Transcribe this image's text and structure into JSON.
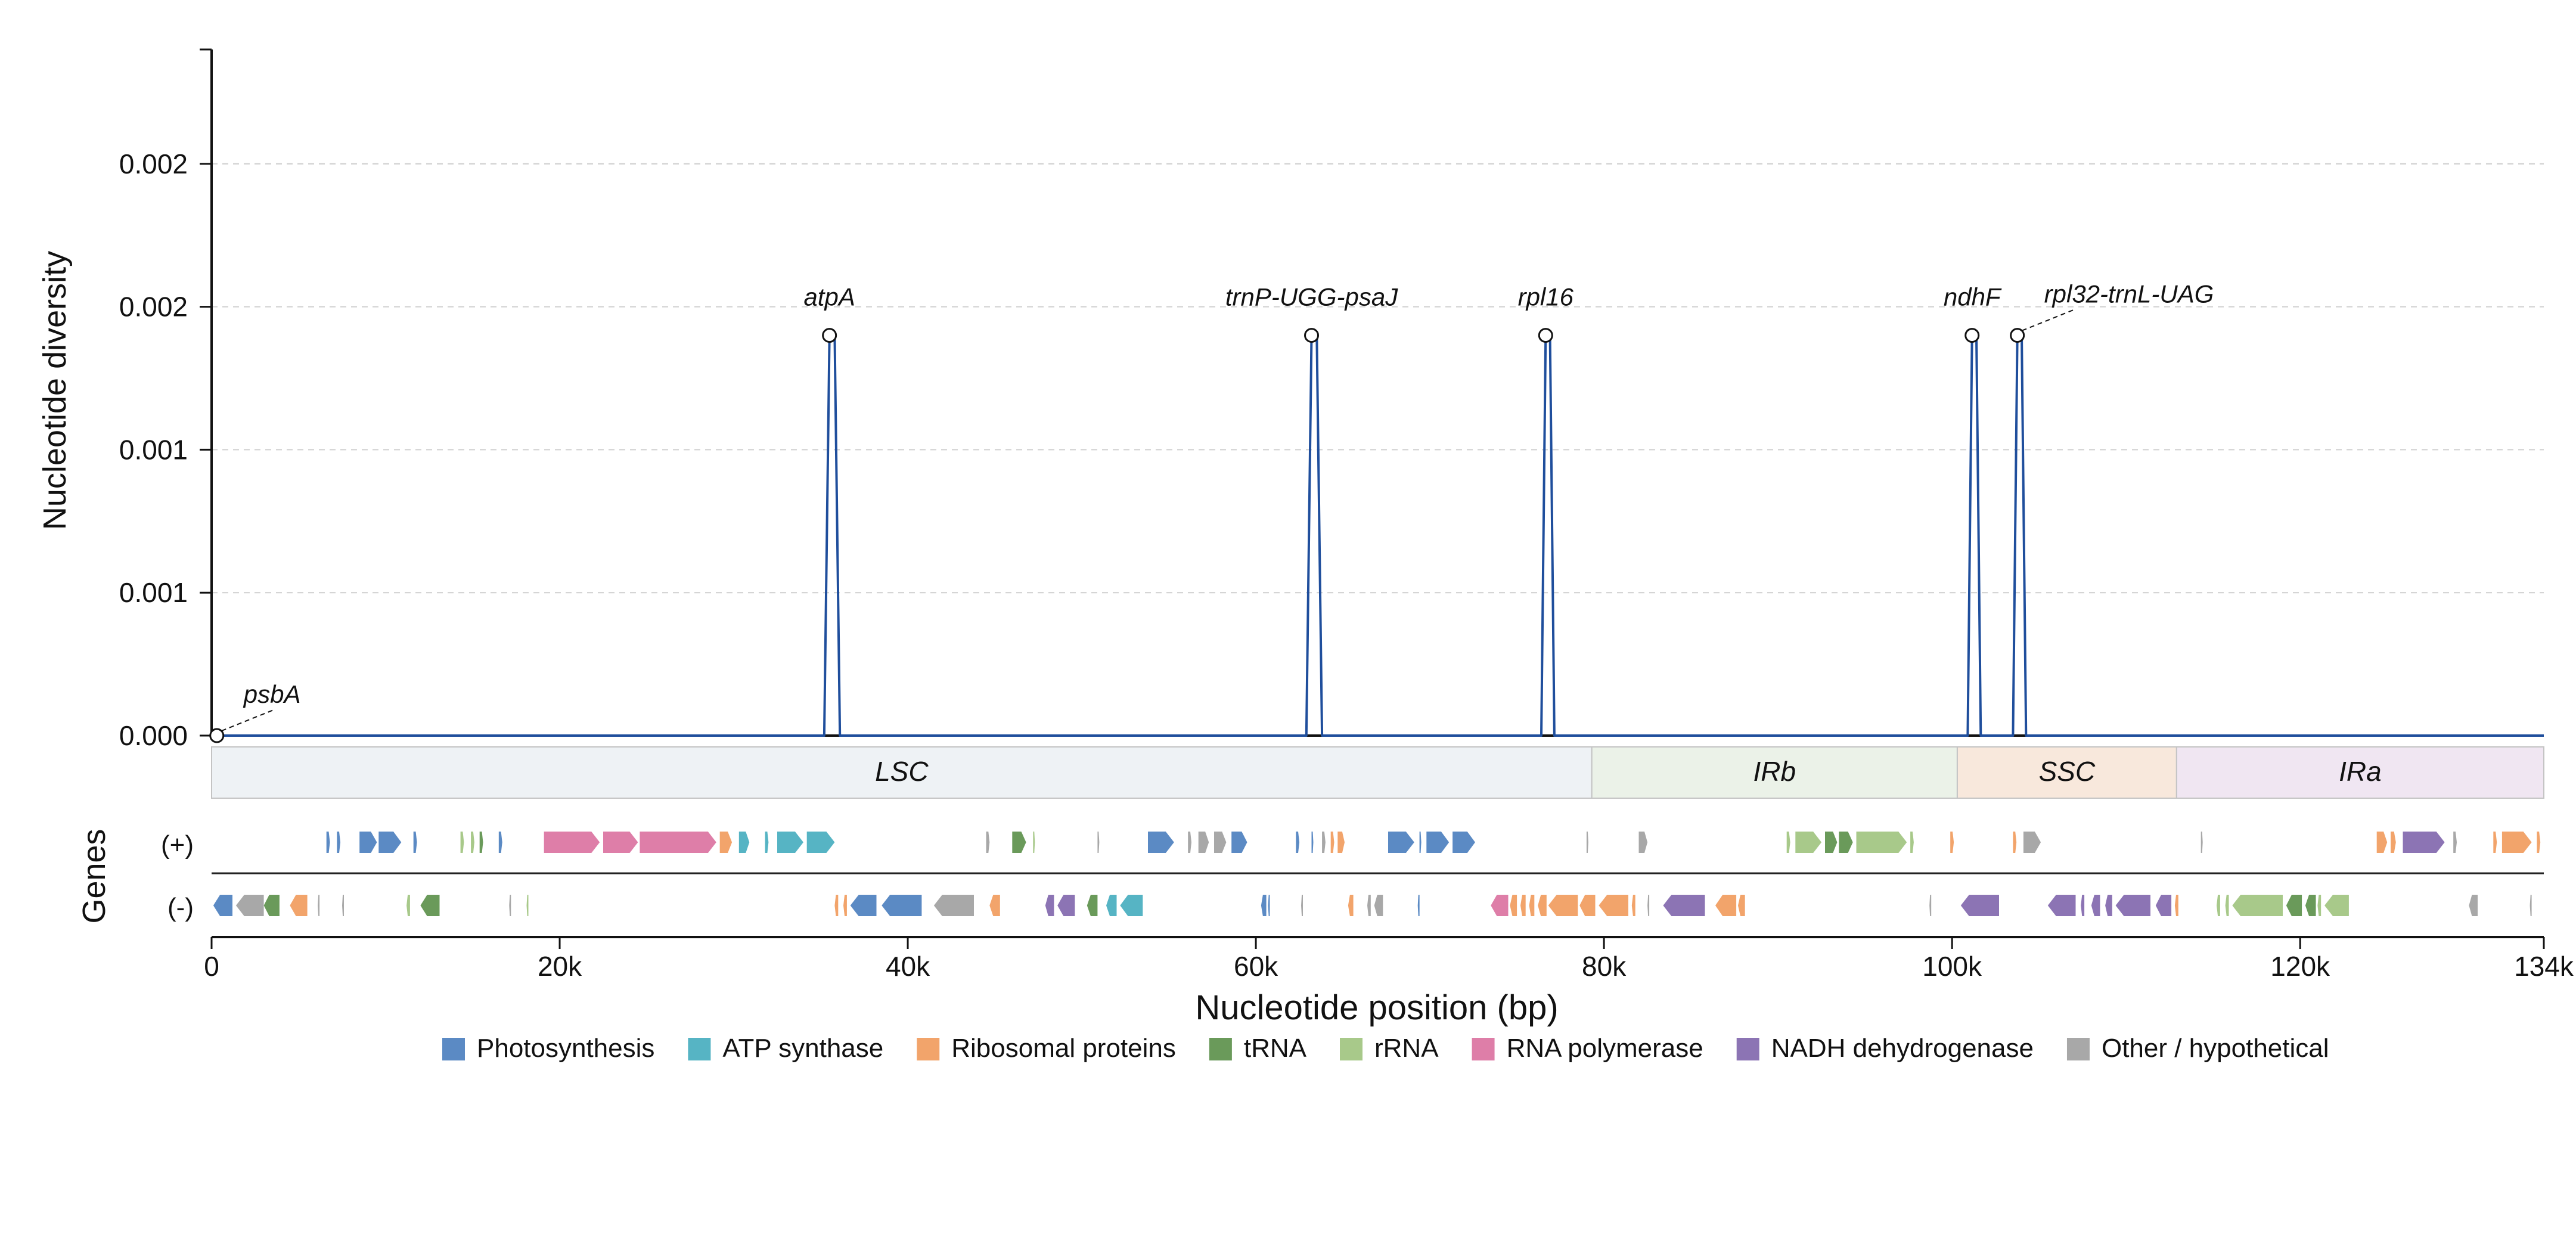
{
  "chart_data": {
    "type": "line",
    "title": "",
    "ylabel": "Nucleotide diversity",
    "xlabel": "Nucleotide position (bp)",
    "track_label": "Genes",
    "strand_labels": [
      "(+)",
      "(-)"
    ],
    "ylim": [
      0,
      0.0024
    ],
    "xlim": [
      0,
      134000
    ],
    "y_ticks": [
      0,
      0.0005,
      0.001,
      0.0015,
      0.002
    ],
    "y_tick_labels": [
      "0.000",
      "0.001",
      "0.001",
      "0.002",
      "0.002"
    ],
    "x_ticks": [
      0,
      20000,
      40000,
      60000,
      80000,
      100000,
      120000,
      134000
    ],
    "x_tick_labels": [
      "0",
      "20k",
      "40k",
      "60k",
      "80k",
      "100k",
      "120k",
      "134k"
    ],
    "grid": true,
    "series": [
      {
        "color": "#1f4e9c",
        "x": [
          0,
          35200,
          35500,
          35800,
          36100,
          62900,
          63200,
          63500,
          63800,
          76400,
          76650,
          76900,
          77150,
          100900,
          101150,
          101400,
          101650,
          103500,
          103750,
          104000,
          104250,
          134000
        ],
        "y": [
          0,
          0,
          0.0014,
          0.0014,
          0,
          0,
          0.0014,
          0.0014,
          0,
          0,
          0.0014,
          0.0014,
          0,
          0,
          0.0014,
          0.0014,
          0,
          0,
          0.0014,
          0.0014,
          0,
          0
        ]
      }
    ],
    "peaks": [
      {
        "label": "psbA",
        "x": 300,
        "y": 0,
        "leader": true
      },
      {
        "label": "atpA",
        "x": 35500,
        "y": 0.0014,
        "leader": false
      },
      {
        "label": "trnP-UGG-psaJ",
        "x": 63200,
        "y": 0.0014,
        "leader": false
      },
      {
        "label": "rpl16",
        "x": 76650,
        "y": 0.0014,
        "leader": false
      },
      {
        "label": "ndhF",
        "x": 101150,
        "y": 0.0014,
        "leader": false
      },
      {
        "label": "rpl32-trnL-UAG",
        "x": 103750,
        "y": 0.0014,
        "leader": true
      }
    ],
    "regions": [
      {
        "label": "LSC",
        "start": 0,
        "end": 79300,
        "color": "#eef2f5"
      },
      {
        "label": "IRb",
        "start": 79300,
        "end": 100300,
        "color": "#ebf2e8"
      },
      {
        "label": "SSC",
        "start": 100300,
        "end": 112900,
        "color": "#f8e8dc"
      },
      {
        "label": "IRa",
        "start": 112900,
        "end": 134000,
        "color": "#f0e6f2"
      }
    ],
    "categories": [
      {
        "key": "photo",
        "label": "Photosynthesis",
        "color": "#5b8ac4"
      },
      {
        "key": "atp",
        "label": "ATP synthase",
        "color": "#56b4c4"
      },
      {
        "key": "ribo",
        "label": "Ribosomal proteins",
        "color": "#f2a46b"
      },
      {
        "key": "trna",
        "label": "tRNA",
        "color": "#6a9a5a"
      },
      {
        "key": "rrna",
        "label": "rRNA",
        "color": "#a8c98a"
      },
      {
        "key": "rpo",
        "label": "RNA polymerase",
        "color": "#de7ea8"
      },
      {
        "key": "ndh",
        "label": "NADH dehydrogenase",
        "color": "#8c74b4"
      },
      {
        "key": "other",
        "label": "Other / hypothetical",
        "color": "#a8a8a8"
      }
    ],
    "genes": [
      {
        "strand": "+",
        "start": 6600,
        "end": 6800,
        "cat": "photo"
      },
      {
        "strand": "+",
        "start": 7200,
        "end": 7400,
        "cat": "photo"
      },
      {
        "strand": "+",
        "start": 8500,
        "end": 9500,
        "cat": "photo"
      },
      {
        "strand": "+",
        "start": 9600,
        "end": 10900,
        "cat": "photo"
      },
      {
        "strand": "+",
        "start": 11600,
        "end": 11800,
        "cat": "photo"
      },
      {
        "strand": "+",
        "start": 14300,
        "end": 14500,
        "cat": "rrna"
      },
      {
        "strand": "+",
        "start": 14900,
        "end": 15100,
        "cat": "rrna"
      },
      {
        "strand": "+",
        "start": 15400,
        "end": 15600,
        "cat": "trna"
      },
      {
        "strand": "+",
        "start": 16500,
        "end": 16700,
        "cat": "photo"
      },
      {
        "strand": "+",
        "start": 19100,
        "end": 22300,
        "cat": "rpo"
      },
      {
        "strand": "+",
        "start": 22500,
        "end": 24500,
        "cat": "rpo"
      },
      {
        "strand": "+",
        "start": 24600,
        "end": 29000,
        "cat": "rpo"
      },
      {
        "strand": "+",
        "start": 29200,
        "end": 29900,
        "cat": "ribo"
      },
      {
        "strand": "+",
        "start": 30300,
        "end": 30900,
        "cat": "atp"
      },
      {
        "strand": "+",
        "start": 31800,
        "end": 32000,
        "cat": "atp"
      },
      {
        "strand": "+",
        "start": 32500,
        "end": 34000,
        "cat": "atp"
      },
      {
        "strand": "+",
        "start": 34200,
        "end": 35800,
        "cat": "atp"
      },
      {
        "strand": "+",
        "start": 44500,
        "end": 44700,
        "cat": "other"
      },
      {
        "strand": "+",
        "start": 46000,
        "end": 46800,
        "cat": "trna"
      },
      {
        "strand": "+",
        "start": 47200,
        "end": 47300,
        "cat": "rrna"
      },
      {
        "strand": "+",
        "start": 50900,
        "end": 51000,
        "cat": "other"
      },
      {
        "strand": "+",
        "start": 53800,
        "end": 55300,
        "cat": "photo"
      },
      {
        "strand": "+",
        "start": 56100,
        "end": 56300,
        "cat": "other"
      },
      {
        "strand": "+",
        "start": 56700,
        "end": 57300,
        "cat": "other"
      },
      {
        "strand": "+",
        "start": 57600,
        "end": 58300,
        "cat": "other"
      },
      {
        "strand": "+",
        "start": 58600,
        "end": 59500,
        "cat": "photo"
      },
      {
        "strand": "+",
        "start": 62300,
        "end": 62500,
        "cat": "photo"
      },
      {
        "strand": "+",
        "start": 63200,
        "end": 63300,
        "cat": "photo"
      },
      {
        "strand": "+",
        "start": 63800,
        "end": 64000,
        "cat": "other"
      },
      {
        "strand": "+",
        "start": 64300,
        "end": 64500,
        "cat": "ribo"
      },
      {
        "strand": "+",
        "start": 64700,
        "end": 65100,
        "cat": "ribo"
      },
      {
        "strand": "+",
        "start": 67600,
        "end": 69100,
        "cat": "photo"
      },
      {
        "strand": "+",
        "start": 69400,
        "end": 69500,
        "cat": "photo"
      },
      {
        "strand": "+",
        "start": 69800,
        "end": 71100,
        "cat": "photo"
      },
      {
        "strand": "+",
        "start": 71300,
        "end": 72600,
        "cat": "photo"
      },
      {
        "strand": "+",
        "start": 79000,
        "end": 79100,
        "cat": "other"
      },
      {
        "strand": "+",
        "start": 82000,
        "end": 82500,
        "cat": "other"
      },
      {
        "strand": "+",
        "start": 90500,
        "end": 90700,
        "cat": "rrna"
      },
      {
        "strand": "+",
        "start": 91000,
        "end": 92500,
        "cat": "rrna"
      },
      {
        "strand": "+",
        "start": 92700,
        "end": 93400,
        "cat": "trna"
      },
      {
        "strand": "+",
        "start": 93500,
        "end": 94300,
        "cat": "trna"
      },
      {
        "strand": "+",
        "start": 94500,
        "end": 97400,
        "cat": "rrna"
      },
      {
        "strand": "+",
        "start": 97600,
        "end": 97800,
        "cat": "rrna"
      },
      {
        "strand": "+",
        "start": 99900,
        "end": 100100,
        "cat": "ribo"
      },
      {
        "strand": "+",
        "start": 103500,
        "end": 103700,
        "cat": "ribo"
      },
      {
        "strand": "+",
        "start": 104100,
        "end": 105100,
        "cat": "other"
      },
      {
        "strand": "+",
        "start": 114300,
        "end": 114400,
        "cat": "other"
      },
      {
        "strand": "+",
        "start": 124400,
        "end": 125000,
        "cat": "ribo"
      },
      {
        "strand": "+",
        "start": 125200,
        "end": 125500,
        "cat": "ribo"
      },
      {
        "strand": "+",
        "start": 125900,
        "end": 128300,
        "cat": "ndh"
      },
      {
        "strand": "+",
        "start": 128800,
        "end": 129000,
        "cat": "other"
      },
      {
        "strand": "+",
        "start": 131100,
        "end": 131300,
        "cat": "ribo"
      },
      {
        "strand": "+",
        "start": 131600,
        "end": 133300,
        "cat": "ribo"
      },
      {
        "strand": "+",
        "start": 133600,
        "end": 133800,
        "cat": "ribo"
      },
      {
        "strand": "-",
        "start": 100,
        "end": 1200,
        "cat": "photo"
      },
      {
        "strand": "-",
        "start": 1400,
        "end": 3000,
        "cat": "other"
      },
      {
        "strand": "-",
        "start": 3000,
        "end": 3900,
        "cat": "trna"
      },
      {
        "strand": "-",
        "start": 4500,
        "end": 5500,
        "cat": "ribo"
      },
      {
        "strand": "-",
        "start": 6100,
        "end": 6200,
        "cat": "other"
      },
      {
        "strand": "-",
        "start": 7500,
        "end": 7600,
        "cat": "other"
      },
      {
        "strand": "-",
        "start": 11200,
        "end": 11400,
        "cat": "rrna"
      },
      {
        "strand": "-",
        "start": 12000,
        "end": 13100,
        "cat": "trna"
      },
      {
        "strand": "-",
        "start": 17100,
        "end": 17200,
        "cat": "other"
      },
      {
        "strand": "-",
        "start": 18100,
        "end": 18200,
        "cat": "rrna"
      },
      {
        "strand": "-",
        "start": 35800,
        "end": 36000,
        "cat": "ribo"
      },
      {
        "strand": "-",
        "start": 36300,
        "end": 36500,
        "cat": "ribo"
      },
      {
        "strand": "-",
        "start": 36700,
        "end": 38200,
        "cat": "photo"
      },
      {
        "strand": "-",
        "start": 38500,
        "end": 40800,
        "cat": "photo"
      },
      {
        "strand": "-",
        "start": 41500,
        "end": 43800,
        "cat": "other"
      },
      {
        "strand": "-",
        "start": 44700,
        "end": 45300,
        "cat": "ribo"
      },
      {
        "strand": "-",
        "start": 47900,
        "end": 48400,
        "cat": "ndh"
      },
      {
        "strand": "-",
        "start": 48600,
        "end": 49600,
        "cat": "ndh"
      },
      {
        "strand": "-",
        "start": 50300,
        "end": 50900,
        "cat": "trna"
      },
      {
        "strand": "-",
        "start": 51400,
        "end": 52000,
        "cat": "atp"
      },
      {
        "strand": "-",
        "start": 52200,
        "end": 53500,
        "cat": "atp"
      },
      {
        "strand": "-",
        "start": 60300,
        "end": 60600,
        "cat": "photo"
      },
      {
        "strand": "-",
        "start": 60700,
        "end": 60800,
        "cat": "photo"
      },
      {
        "strand": "-",
        "start": 62600,
        "end": 62700,
        "cat": "other"
      },
      {
        "strand": "-",
        "start": 65300,
        "end": 65600,
        "cat": "ribo"
      },
      {
        "strand": "-",
        "start": 66400,
        "end": 66600,
        "cat": "other"
      },
      {
        "strand": "-",
        "start": 66800,
        "end": 67300,
        "cat": "other"
      },
      {
        "strand": "-",
        "start": 69300,
        "end": 69400,
        "cat": "photo"
      },
      {
        "strand": "-",
        "start": 73500,
        "end": 74500,
        "cat": "rpo"
      },
      {
        "strand": "-",
        "start": 74600,
        "end": 75000,
        "cat": "ribo"
      },
      {
        "strand": "-",
        "start": 75200,
        "end": 75500,
        "cat": "ribo"
      },
      {
        "strand": "-",
        "start": 75700,
        "end": 76000,
        "cat": "ribo"
      },
      {
        "strand": "-",
        "start": 76200,
        "end": 76700,
        "cat": "ribo"
      },
      {
        "strand": "-",
        "start": 76800,
        "end": 78500,
        "cat": "ribo"
      },
      {
        "strand": "-",
        "start": 78600,
        "end": 79500,
        "cat": "ribo"
      },
      {
        "strand": "-",
        "start": 79700,
        "end": 81400,
        "cat": "ribo"
      },
      {
        "strand": "-",
        "start": 81600,
        "end": 81800,
        "cat": "ribo"
      },
      {
        "strand": "-",
        "start": 82500,
        "end": 82600,
        "cat": "other"
      },
      {
        "strand": "-",
        "start": 83400,
        "end": 85800,
        "cat": "ndh"
      },
      {
        "strand": "-",
        "start": 86400,
        "end": 87600,
        "cat": "ribo"
      },
      {
        "strand": "-",
        "start": 87700,
        "end": 88100,
        "cat": "ribo"
      },
      {
        "strand": "-",
        "start": 98700,
        "end": 98800,
        "cat": "other"
      },
      {
        "strand": "-",
        "start": 100500,
        "end": 102700,
        "cat": "ndh"
      },
      {
        "strand": "-",
        "start": 105500,
        "end": 107100,
        "cat": "ndh"
      },
      {
        "strand": "-",
        "start": 107400,
        "end": 107600,
        "cat": "ndh"
      },
      {
        "strand": "-",
        "start": 108000,
        "end": 108500,
        "cat": "ndh"
      },
      {
        "strand": "-",
        "start": 108800,
        "end": 109200,
        "cat": "ndh"
      },
      {
        "strand": "-",
        "start": 109400,
        "end": 111400,
        "cat": "ndh"
      },
      {
        "strand": "-",
        "start": 111700,
        "end": 112600,
        "cat": "ndh"
      },
      {
        "strand": "-",
        "start": 112800,
        "end": 113000,
        "cat": "ribo"
      },
      {
        "strand": "-",
        "start": 115200,
        "end": 115400,
        "cat": "rrna"
      },
      {
        "strand": "-",
        "start": 115700,
        "end": 115900,
        "cat": "rrna"
      },
      {
        "strand": "-",
        "start": 116100,
        "end": 119000,
        "cat": "rrna"
      },
      {
        "strand": "-",
        "start": 119200,
        "end": 120100,
        "cat": "trna"
      },
      {
        "strand": "-",
        "start": 120300,
        "end": 120900,
        "cat": "trna"
      },
      {
        "strand": "-",
        "start": 121000,
        "end": 121200,
        "cat": "rrna"
      },
      {
        "strand": "-",
        "start": 121400,
        "end": 122800,
        "cat": "rrna"
      },
      {
        "strand": "-",
        "start": 129700,
        "end": 130200,
        "cat": "other"
      },
      {
        "strand": "-",
        "start": 133200,
        "end": 133300,
        "cat": "other"
      }
    ]
  }
}
